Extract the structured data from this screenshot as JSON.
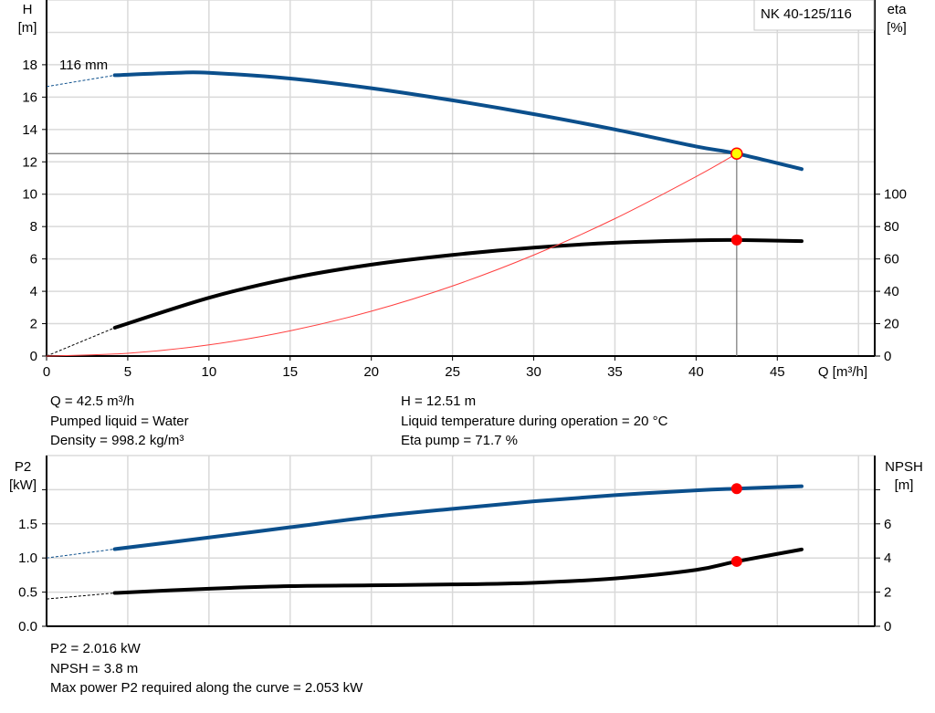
{
  "model_label": "NK 40-125/116",
  "impeller_label": "116 mm",
  "info_top_left": [
    "Q = 42.5 m³/h",
    "Pumped liquid = Water",
    "Density = 998.2 kg/m³"
  ],
  "info_top_right": [
    "H = 12.51 m",
    "Liquid temperature during operation = 20 °C",
    "Eta pump = 71.7 %"
  ],
  "info_bottom": [
    "P2 = 2.016 kW",
    "NPSH = 3.8 m",
    "Max power P2 required along the curve = 2.053 kW"
  ],
  "colors": {
    "head": "#0b4f8c",
    "eta": "#000000",
    "system": "#ff4040",
    "p2": "#0b4f8c",
    "npsh": "#000000",
    "duty_point": "#ff0000",
    "duty_fill": "#ffff00",
    "grid": "#d9d9d9"
  },
  "chart_data": [
    {
      "type": "line",
      "xlabel": "Q [m³/h]",
      "ylabel": "H\n[m]",
      "y2label": "eta\n[%]",
      "xlim": [
        0,
        51
      ],
      "ylim": [
        0,
        22
      ],
      "y2lim": [
        0,
        220
      ],
      "xticks": [
        0,
        5,
        10,
        15,
        20,
        25,
        30,
        35,
        40,
        45
      ],
      "yticks": [
        0,
        2,
        4,
        6,
        8,
        10,
        12,
        14,
        16,
        18
      ],
      "y2ticks": [
        0,
        20,
        40,
        60,
        80,
        100
      ],
      "grid": true,
      "duty_point": {
        "Q": 42.5,
        "H": 12.51,
        "eta": 71.7
      },
      "series": [
        {
          "key": "head",
          "axis": "left",
          "x": [
            4.2,
            8,
            10,
            15,
            20,
            25,
            30,
            35,
            40,
            42.5,
            46.5
          ],
          "y": [
            17.35,
            17.5,
            17.5,
            17.15,
            16.55,
            15.8,
            14.95,
            14.0,
            12.95,
            12.51,
            11.55
          ],
          "dashed_from": [
            0,
            16.65
          ]
        },
        {
          "key": "eta",
          "axis": "right",
          "x": [
            4.2,
            10,
            15,
            20,
            25,
            30,
            35,
            40,
            42.5,
            46.5
          ],
          "y": [
            17.5,
            36,
            48,
            56.5,
            62.5,
            67,
            70,
            71.5,
            71.7,
            71
          ],
          "dashed_from": [
            0,
            0
          ]
        },
        {
          "key": "system",
          "axis": "left",
          "x": [
            0,
            5,
            10,
            15,
            20,
            25,
            30,
            35,
            40,
            42.5
          ],
          "y": [
            0,
            0.17,
            0.69,
            1.56,
            2.77,
            4.33,
            6.24,
            8.49,
            11.09,
            12.51
          ]
        }
      ]
    },
    {
      "type": "line",
      "ylabel": "P2\n[kW]",
      "y2label": "NPSH\n[m]",
      "xlim": [
        0,
        51
      ],
      "ylim": [
        0,
        2.5
      ],
      "y2lim": [
        0,
        10
      ],
      "yticks": [
        "0.0",
        "0.5",
        "1.0",
        "1.5"
      ],
      "y2ticks": [
        0,
        2,
        4,
        6
      ],
      "grid": true,
      "duty_point": {
        "Q": 42.5,
        "P2": 2.016,
        "NPSH": 3.8
      },
      "series": [
        {
          "key": "p2",
          "axis": "left",
          "x": [
            4.2,
            10,
            15,
            20,
            25,
            30,
            35,
            40,
            42.5,
            46.5
          ],
          "y": [
            1.13,
            1.3,
            1.45,
            1.6,
            1.72,
            1.83,
            1.92,
            1.99,
            2.016,
            2.05
          ],
          "dashed_from": [
            0,
            1.0
          ]
        },
        {
          "key": "npsh",
          "axis": "right",
          "x": [
            4.2,
            10,
            15,
            20,
            25,
            30,
            35,
            40,
            42.5,
            46.5
          ],
          "y": [
            1.95,
            2.2,
            2.35,
            2.4,
            2.45,
            2.55,
            2.8,
            3.3,
            3.8,
            4.5
          ],
          "dashed_from": [
            0,
            1.6
          ]
        }
      ]
    }
  ]
}
